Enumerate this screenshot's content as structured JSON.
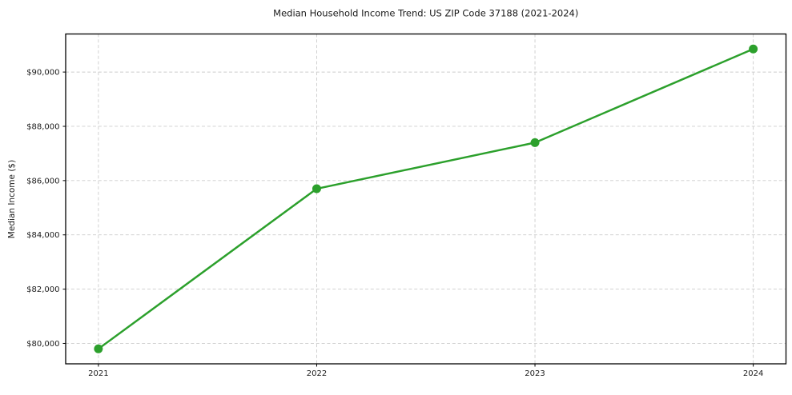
{
  "chart_data": {
    "type": "line",
    "title": "Median Household Income Trend: US ZIP Code 37188 (2021-2024)",
    "ylabel": "Median Income ($)",
    "x": [
      2021,
      2022,
      2023,
      2024
    ],
    "values": [
      79800,
      85700,
      87400,
      90850
    ],
    "value_labels": [
      "$79,800",
      "$85,700",
      "$87,400",
      "$90,850"
    ],
    "xticks": [
      {
        "value": 2021,
        "label": "2021"
      },
      {
        "value": 2022,
        "label": "2022"
      },
      {
        "value": 2023,
        "label": "2023"
      },
      {
        "value": 2024,
        "label": "2024"
      }
    ],
    "yticks": [
      {
        "value": 80000,
        "label": "$80,000"
      },
      {
        "value": 82000,
        "label": "$82,000"
      },
      {
        "value": 84000,
        "label": "$84,000"
      },
      {
        "value": 86000,
        "label": "$86,000"
      },
      {
        "value": 88000,
        "label": "$88,000"
      },
      {
        "value": 90000,
        "label": "$90,000"
      }
    ],
    "xlim": [
      2020.85,
      2024.15
    ],
    "ylim": [
      79248,
      91403
    ],
    "grid": true,
    "grid_style": "dashed",
    "legend": false,
    "marker": "circle"
  },
  "style": {
    "line_color": "#2ca02c",
    "marker_color": "#2ca02c",
    "grid_color": "#cccccc",
    "axis_color": "#000000",
    "text_color": "#1a1a1a",
    "background": "#ffffff"
  }
}
